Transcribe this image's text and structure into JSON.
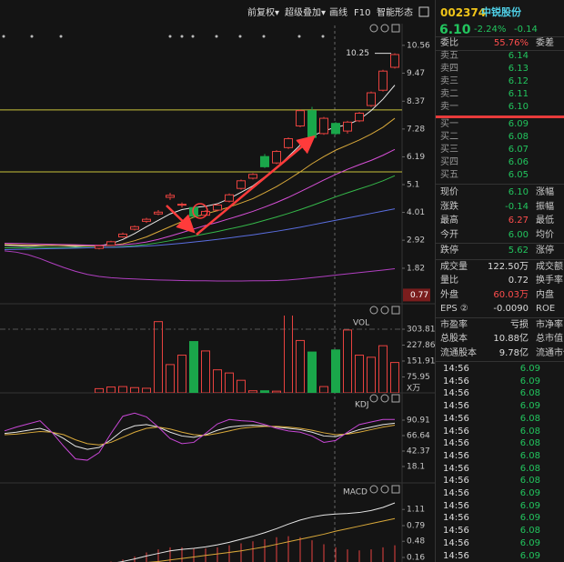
{
  "toolbar": [
    "前复权▾",
    "超级叠加▾",
    "画线",
    "F10",
    "智能形态"
  ],
  "chart_data": [
    {
      "type": "candlestick",
      "categories": [
        null,
        null,
        null,
        null,
        null,
        null,
        null,
        null,
        null,
        null,
        null,
        null,
        null,
        null,
        null,
        null,
        null,
        null,
        null,
        null,
        null,
        null,
        null,
        null,
        null,
        null,
        null,
        null,
        null,
        null,
        null,
        null,
        null,
        null
      ],
      "open": [
        null,
        null,
        null,
        null,
        null,
        null,
        null,
        null,
        2.6,
        2.72,
        3.05,
        3.35,
        3.66,
        3.95,
        4.6,
        4.3,
        4.2,
        3.9,
        4.1,
        4.45,
        4.95,
        5.35,
        6.2,
        5.95,
        6.55,
        7.4,
        8.0,
        7.1,
        7.5,
        7.2,
        7.6,
        8.2,
        8.8,
        9.7
      ],
      "high": [
        null,
        null,
        null,
        null,
        null,
        null,
        null,
        null,
        2.74,
        2.9,
        3.22,
        3.5,
        3.8,
        4.1,
        4.78,
        4.4,
        4.22,
        4.1,
        4.35,
        4.75,
        5.3,
        5.55,
        6.3,
        6.45,
        6.95,
        8.05,
        8.15,
        7.75,
        7.55,
        7.6,
        7.95,
        8.75,
        9.6,
        10.25
      ],
      "low": [
        null,
        null,
        null,
        null,
        null,
        null,
        null,
        null,
        2.56,
        2.7,
        3.02,
        3.3,
        3.6,
        3.9,
        4.5,
        4.2,
        3.8,
        3.85,
        4.05,
        4.4,
        4.9,
        5.3,
        5.75,
        5.9,
        6.5,
        7.35,
        6.85,
        7.05,
        7.05,
        7.1,
        7.55,
        8.15,
        8.75,
        9.65
      ],
      "close": [
        null,
        null,
        null,
        null,
        null,
        null,
        null,
        null,
        2.7,
        2.86,
        3.16,
        3.45,
        3.74,
        4.02,
        4.68,
        4.33,
        3.86,
        4.05,
        4.3,
        4.7,
        5.25,
        5.5,
        5.8,
        6.4,
        6.9,
        8.0,
        6.95,
        7.7,
        7.1,
        7.55,
        7.9,
        8.7,
        9.55,
        10.2
      ],
      "up_color": "#e8423f",
      "down_color": "#1aa64a",
      "series": [
        {
          "color": "#e6e6e6",
          "values": [
            2.72,
            2.7,
            2.68,
            2.7,
            2.72,
            2.7,
            2.68,
            2.7,
            2.7,
            2.78,
            2.95,
            3.18,
            3.45,
            3.7,
            3.95,
            4.12,
            4.2,
            4.25,
            4.35,
            4.55,
            4.8,
            5.05,
            5.4,
            5.75,
            6.2,
            6.65,
            7.0,
            7.2,
            7.35,
            7.45,
            7.65,
            8.0,
            8.45,
            9.0
          ]
        },
        {
          "color": "#d9a93a",
          "values": [
            2.75,
            2.74,
            2.73,
            2.72,
            2.72,
            2.71,
            2.71,
            2.7,
            2.7,
            2.72,
            2.78,
            2.9,
            3.05,
            3.25,
            3.45,
            3.65,
            3.82,
            3.95,
            4.08,
            4.22,
            4.38,
            4.55,
            4.78,
            5.02,
            5.3,
            5.6,
            5.92,
            6.2,
            6.45,
            6.65,
            6.85,
            7.08,
            7.35,
            7.7
          ]
        },
        {
          "color": "#d64fd6",
          "values": [
            2.8,
            2.79,
            2.78,
            2.77,
            2.76,
            2.75,
            2.74,
            2.73,
            2.72,
            2.72,
            2.74,
            2.78,
            2.85,
            2.95,
            3.08,
            3.22,
            3.36,
            3.5,
            3.62,
            3.76,
            3.9,
            4.05,
            4.22,
            4.4,
            4.6,
            4.82,
            5.05,
            5.28,
            5.5,
            5.7,
            5.88,
            6.05,
            6.25,
            6.48
          ]
        },
        {
          "color": "#35b84a",
          "values": [
            2.62,
            2.62,
            2.62,
            2.63,
            2.63,
            2.63,
            2.64,
            2.64,
            2.64,
            2.65,
            2.67,
            2.7,
            2.75,
            2.82,
            2.9,
            2.99,
            3.08,
            3.17,
            3.26,
            3.36,
            3.46,
            3.57,
            3.7,
            3.83,
            3.97,
            4.12,
            4.28,
            4.45,
            4.62,
            4.78,
            4.93,
            5.08,
            5.25,
            5.45
          ]
        },
        {
          "color": "#5a6ee0",
          "values": [
            2.55,
            2.56,
            2.57,
            2.58,
            2.59,
            2.6,
            2.61,
            2.62,
            2.63,
            2.64,
            2.65,
            2.67,
            2.69,
            2.72,
            2.76,
            2.8,
            2.85,
            2.9,
            2.95,
            3.01,
            3.07,
            3.13,
            3.2,
            3.27,
            3.35,
            3.43,
            3.52,
            3.61,
            3.7,
            3.79,
            3.88,
            3.97,
            4.06,
            4.15
          ]
        },
        {
          "color": "#b03fc0",
          "values": [
            2.5,
            2.45,
            2.35,
            2.2,
            2.02,
            1.85,
            1.7,
            1.58,
            1.5,
            1.45,
            1.42,
            1.4,
            1.38,
            1.36,
            1.35,
            1.34,
            1.33,
            1.33,
            1.32,
            1.32,
            1.32,
            1.33,
            1.33,
            1.34,
            1.36,
            1.4,
            1.45,
            1.5,
            1.55,
            1.6,
            1.65,
            1.7,
            1.75,
            1.8
          ]
        }
      ],
      "hlines": [
        8.03,
        5.6
      ],
      "hline_color": "#c8c23a",
      "ylim": [
        0.5,
        11.34
      ],
      "yticks": [
        10.56,
        9.47,
        8.37,
        7.28,
        6.19,
        5.1,
        4.01,
        2.92,
        1.82
      ],
      "cursor_value": 0.77
    },
    {
      "type": "bar",
      "title": "VOL",
      "values": [
        null,
        null,
        null,
        null,
        null,
        null,
        null,
        null,
        20,
        28,
        30,
        25,
        22,
        340,
        135,
        180,
        245,
        200,
        110,
        95,
        60,
        10,
        10,
        8,
        380,
        250,
        195,
        30,
        205,
        300,
        180,
        170,
        225,
        145
      ],
      "ylim": [
        0,
        369
      ],
      "yticks": [
        303.81,
        227.86,
        151.91,
        75.95
      ],
      "unit": "X万"
    },
    {
      "type": "line",
      "title": "KDJ",
      "series": [
        {
          "color": "#e6e6e6",
          "values": [
            70,
            72,
            75,
            78,
            72,
            62,
            50,
            45,
            48,
            60,
            75,
            82,
            84,
            80,
            72,
            66,
            64,
            68,
            75,
            80,
            82,
            83,
            82,
            80,
            78,
            76,
            72,
            66,
            65,
            70,
            76,
            80,
            84,
            86
          ]
        },
        {
          "color": "#d9a93a",
          "values": [
            68,
            69,
            71,
            73,
            72,
            68,
            60,
            54,
            52,
            56,
            64,
            72,
            78,
            80,
            77,
            72,
            68,
            67,
            70,
            74,
            78,
            80,
            81,
            81,
            80,
            78,
            75,
            71,
            68,
            69,
            72,
            76,
            80,
            83
          ]
        },
        {
          "color": "#c847d6",
          "values": [
            74,
            80,
            85,
            90,
            72,
            50,
            30,
            28,
            40,
            70,
            97,
            102,
            96,
            80,
            62,
            54,
            56,
            70,
            85,
            92,
            90,
            89,
            84,
            78,
            74,
            72,
            66,
            56,
            59,
            72,
            84,
            88,
            92,
            92
          ]
        }
      ],
      "ylim": [
        -6.2,
        126.6
      ],
      "yticks": [
        90.91,
        66.64,
        42.37,
        18.1
      ]
    },
    {
      "type": "macd",
      "title": "MACD",
      "values": [
        0,
        0,
        0,
        0,
        0,
        0,
        0,
        0,
        0.06,
        0.08,
        0.12,
        0.18,
        0.26,
        0.32,
        0.36,
        0.36,
        0.34,
        0.34,
        0.36,
        0.4,
        0.44,
        0.48,
        0.52,
        0.56,
        0.58,
        0.56,
        0.5,
        0.42,
        0.36,
        0.32,
        0.3,
        0.32,
        0.36,
        0.4
      ],
      "bar_color": "#e8423f",
      "series": [
        {
          "color": "#e6e6e6",
          "values": [
            0.01,
            0.01,
            0.01,
            0.01,
            0.01,
            0.01,
            0.01,
            0.01,
            0.02,
            0.04,
            0.08,
            0.13,
            0.19,
            0.24,
            0.29,
            0.32,
            0.34,
            0.37,
            0.41,
            0.46,
            0.52,
            0.58,
            0.65,
            0.73,
            0.82,
            0.9,
            0.96,
            1.0,
            1.02,
            1.03,
            1.05,
            1.09,
            1.15,
            1.24
          ]
        },
        {
          "color": "#d9a93a",
          "values": [
            0.01,
            0.01,
            0.01,
            0.01,
            0.01,
            0.01,
            0.01,
            0.01,
            0.01,
            0.02,
            0.03,
            0.04,
            0.06,
            0.08,
            0.11,
            0.14,
            0.17,
            0.2,
            0.23,
            0.26,
            0.29,
            0.33,
            0.37,
            0.42,
            0.47,
            0.52,
            0.57,
            0.62,
            0.68,
            0.73,
            0.78,
            0.83,
            0.88,
            0.93
          ]
        }
      ],
      "ylim": [
        0.07,
        1.6
      ],
      "yticks": [
        1.11,
        0.79,
        0.48,
        0.16
      ]
    }
  ],
  "quote": {
    "code": "002374",
    "name": "中锐股份",
    "price": "6.10",
    "change_pct": "-2.24%",
    "change": "-0.14",
    "order_ratio": {
      "label": "委比",
      "value": "55.76%",
      "right": "委差"
    },
    "asks": [
      {
        "label": "卖五",
        "price": "6.14"
      },
      {
        "label": "卖四",
        "price": "6.13"
      },
      {
        "label": "卖三",
        "price": "6.12"
      },
      {
        "label": "卖二",
        "price": "6.11"
      },
      {
        "label": "卖一",
        "price": "6.10"
      }
    ],
    "bids": [
      {
        "label": "买一",
        "price": "6.09"
      },
      {
        "label": "买二",
        "price": "6.08"
      },
      {
        "label": "买三",
        "price": "6.07"
      },
      {
        "label": "买四",
        "price": "6.06"
      },
      {
        "label": "买五",
        "price": "6.05"
      }
    ],
    "stats": [
      [
        {
          "label": "现价",
          "value": "6.10",
          "right": "涨幅",
          "color": "#22c55e"
        },
        {
          "label": "涨跌",
          "value": "-0.14",
          "right": "振幅",
          "color": "#22c55e"
        },
        {
          "label": "最高",
          "value": "6.27",
          "right": "最低",
          "color": "#ff4d4d"
        },
        {
          "label": "今开",
          "value": "6.00",
          "right": "均价",
          "color": "#22c55e"
        }
      ],
      [
        {
          "label": "跌停",
          "value": "5.62",
          "right": "涨停",
          "color": "#22c55e"
        }
      ],
      [
        {
          "label": "成交量",
          "value": "122.50万",
          "right": "成交额",
          "color": "#dddddd"
        },
        {
          "label": "量比",
          "value": "0.72",
          "right": "换手率",
          "color": "#dddddd"
        },
        {
          "label": "外盘",
          "value": "60.03万",
          "right": "内盘",
          "color": "#ff4d4d"
        },
        {
          "label": "EPS ②",
          "value": "-0.0090",
          "right": "ROE",
          "color": "#dddddd"
        }
      ],
      [
        {
          "label": "市盈率",
          "value": "亏损",
          "right": "市净率",
          "color": "#dddddd"
        },
        {
          "label": "总股本",
          "value": "10.88亿",
          "right": "总市值",
          "color": "#dddddd"
        },
        {
          "label": "流通股本",
          "value": "9.78亿",
          "right": "流通市值",
          "color": "#dddddd"
        }
      ]
    ],
    "ticks": [
      {
        "time": "14:56",
        "price": "6.09"
      },
      {
        "time": "14:56",
        "price": "6.09"
      },
      {
        "time": "14:56",
        "price": "6.08"
      },
      {
        "time": "14:56",
        "price": "6.09"
      },
      {
        "time": "14:56",
        "price": "6.08"
      },
      {
        "time": "14:56",
        "price": "6.08"
      },
      {
        "time": "14:56",
        "price": "6.08"
      },
      {
        "time": "14:56",
        "price": "6.08"
      },
      {
        "time": "14:56",
        "price": "6.08"
      },
      {
        "time": "14:56",
        "price": "6.08"
      },
      {
        "time": "14:56",
        "price": "6.09"
      },
      {
        "time": "14:56",
        "price": "6.09"
      },
      {
        "time": "14:56",
        "price": "6.09"
      },
      {
        "time": "14:56",
        "price": "6.08"
      },
      {
        "time": "14:56",
        "price": "6.09"
      },
      {
        "time": "14:56",
        "price": "6.09"
      }
    ]
  }
}
